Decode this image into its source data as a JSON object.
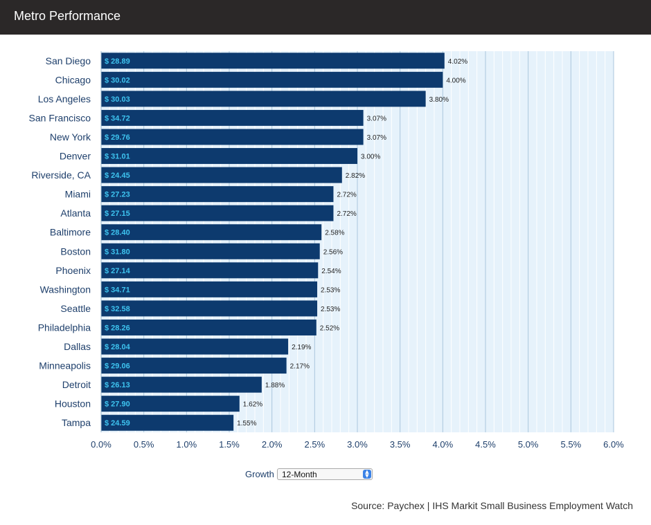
{
  "header": {
    "title": "Metro Performance"
  },
  "controls": {
    "growth_label": "Growth",
    "growth_selected": "12-Month"
  },
  "source": "Source: Paychex | IHS Markit Small Business Employment Watch",
  "colors": {
    "bar": "#0d3a6e",
    "wage_text": "#3ec4f0",
    "plot_bg": "#e6f2fb",
    "header_bg": "#2b2828"
  },
  "chart_data": {
    "type": "bar",
    "orientation": "horizontal",
    "categories": [
      "San Diego",
      "Chicago",
      "Los Angeles",
      "San Francisco",
      "New York",
      "Denver",
      "Riverside, CA",
      "Miami",
      "Atlanta",
      "Baltimore",
      "Boston",
      "Phoenix",
      "Washington",
      "Seattle",
      "Philadelphia",
      "Dallas",
      "Minneapolis",
      "Detroit",
      "Houston",
      "Tampa"
    ],
    "values": [
      4.02,
      4.0,
      3.8,
      3.07,
      3.07,
      3.0,
      2.82,
      2.72,
      2.72,
      2.58,
      2.56,
      2.54,
      2.53,
      2.53,
      2.52,
      2.19,
      2.17,
      1.88,
      1.62,
      1.55
    ],
    "value_labels": [
      "4.02%",
      "4.00%",
      "3.80%",
      "3.07%",
      "3.07%",
      "3.00%",
      "2.82%",
      "2.72%",
      "2.72%",
      "2.58%",
      "2.56%",
      "2.54%",
      "2.53%",
      "2.53%",
      "2.52%",
      "2.19%",
      "2.17%",
      "1.88%",
      "1.62%",
      "1.55%"
    ],
    "bar_labels": [
      "$ 28.89",
      "$ 30.02",
      "$ 30.03",
      "$ 34.72",
      "$ 29.76",
      "$ 31.01",
      "$ 24.45",
      "$ 27.23",
      "$ 27.15",
      "$ 28.40",
      "$ 31.80",
      "$ 27.14",
      "$ 34.71",
      "$ 32.58",
      "$ 28.26",
      "$ 28.04",
      "$ 29.06",
      "$ 26.13",
      "$ 27.90",
      "$ 24.59"
    ],
    "x_ticks": [
      "0.0%",
      "0.5%",
      "1.0%",
      "1.5%",
      "2.0%",
      "2.5%",
      "3.0%",
      "3.5%",
      "4.0%",
      "4.5%",
      "5.0%",
      "5.5%",
      "6.0%"
    ],
    "xlim": [
      0,
      6
    ],
    "grid": true,
    "legend": "none"
  }
}
